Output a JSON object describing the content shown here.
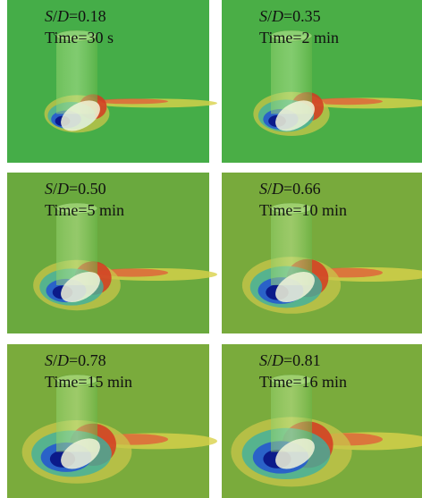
{
  "panels": [
    {
      "ratio": [
        "S",
        "/",
        "D",
        "=0.18"
      ],
      "time": "Time=30 s"
    },
    {
      "ratio": [
        "S",
        "/",
        "D",
        "=0.35"
      ],
      "time": "Time=2 min"
    },
    {
      "ratio": [
        "S",
        "/",
        "D",
        "=0.50"
      ],
      "time": "Time=5 min"
    },
    {
      "ratio": [
        "S",
        "/",
        "D",
        "=0.66"
      ],
      "time": "Time=10 min"
    },
    {
      "ratio": [
        "S",
        "/",
        "D",
        "=0.78"
      ],
      "time": "Time=15 min"
    },
    {
      "ratio": [
        "S",
        "/",
        "D",
        "=0.81"
      ],
      "time": "Time=16 min"
    }
  ]
}
